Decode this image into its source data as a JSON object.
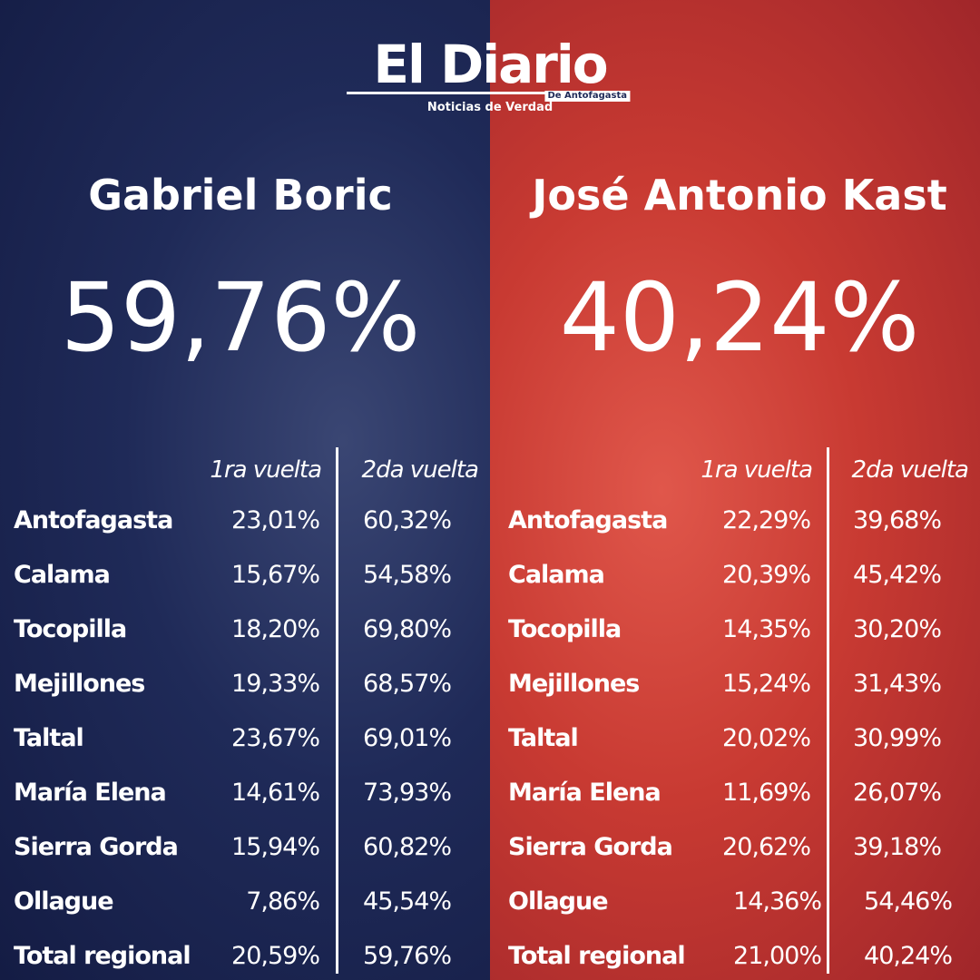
{
  "logo": {
    "title": "El Diario",
    "subtitle": "De Antofagasta",
    "tagline": "Noticias de Verdad"
  },
  "candidates": [
    {
      "name": "Gabriel Boric",
      "result": "59,76%",
      "columns": [
        "1ra vuelta",
        "2da vuelta"
      ],
      "rows": [
        [
          "Antofagasta",
          "23,01%",
          "60,32%"
        ],
        [
          "Calama",
          "15,67%",
          "54,58%"
        ],
        [
          "Tocopilla",
          "18,20%",
          "69,80%"
        ],
        [
          "Mejillones",
          "19,33%",
          "68,57%"
        ],
        [
          "Taltal",
          "23,67%",
          "69,01%"
        ],
        [
          "María Elena",
          "14,61%",
          "73,93%"
        ],
        [
          "Sierra Gorda",
          "15,94%",
          "60,82%"
        ],
        [
          "Ollague",
          "7,86%",
          "45,54%"
        ],
        [
          "Total regional",
          "20,59%",
          "59,76%"
        ]
      ]
    },
    {
      "name": "José Antonio Kast",
      "result": "40,24%",
      "columns": [
        "1ra vuelta",
        "2da vuelta"
      ],
      "rows": [
        [
          "Antofagasta",
          "22,29%",
          "39,68%"
        ],
        [
          "Calama",
          "20,39%",
          "45,42%"
        ],
        [
          "Tocopilla",
          "14,35%",
          "30,20%"
        ],
        [
          "Mejillones",
          "15,24%",
          "31,43%"
        ],
        [
          "Taltal",
          "20,02%",
          "30,99%"
        ],
        [
          "María Elena",
          "11,69%",
          "26,07%"
        ],
        [
          "Sierra Gorda",
          "20,62%",
          "39,18%"
        ],
        [
          "Ollague",
          "14,36%",
          "54,46%"
        ],
        [
          "Total regional",
          "21,00%",
          "40,24%"
        ]
      ]
    }
  ]
}
